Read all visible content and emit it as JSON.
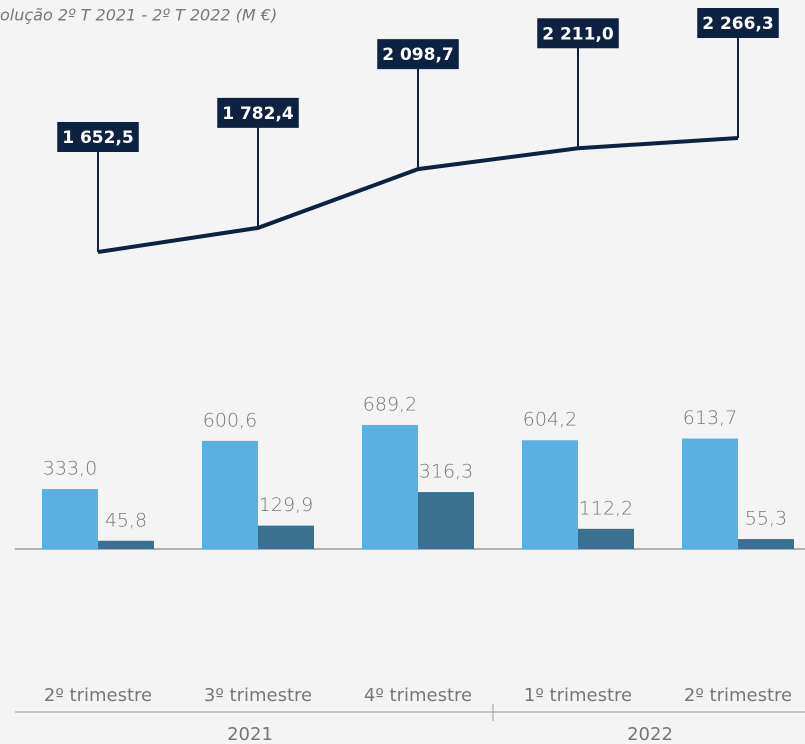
{
  "chart_data": [
    {
      "type": "line",
      "title": "olução 2º T 2021 - 2º T 2022 (M €)",
      "color": "#0d2240",
      "values": [
        1652.5,
        1782.4,
        2098.7,
        2211.0,
        2266.3
      ],
      "value_labels": [
        "1 652,5",
        "1 782,4",
        "2 098,7",
        "2 211,0",
        "2 266,3"
      ]
    },
    {
      "type": "bar",
      "categories": [
        "2º trimestre",
        "3º trimestre",
        "4º trimestre",
        "1º trimestre",
        "2º trimestre"
      ],
      "year_labels": [
        "2021",
        "2022"
      ],
      "series": [
        {
          "color": "#5aafe3",
          "values": [
            333.0,
            600.6,
            689.2,
            604.2,
            613.7
          ],
          "value_labels": [
            "333,0",
            "600,6",
            "689,2",
            "604,2",
            "613,7"
          ]
        },
        {
          "color": "#3a7190",
          "values": [
            45.8,
            129.9,
            316.3,
            112.2,
            55.3
          ],
          "value_labels": [
            "45,8",
            "129,9",
            "316,3",
            "112,2",
            "55,3"
          ]
        }
      ]
    }
  ]
}
